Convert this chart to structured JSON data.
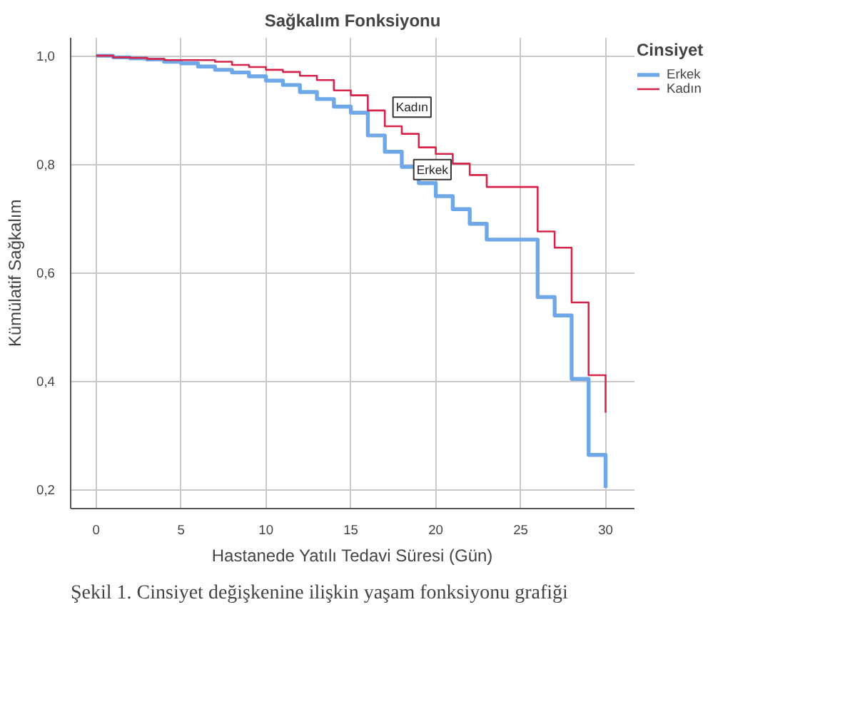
{
  "chart_data": {
    "type": "step",
    "title": "Sağkalım Fonksiyonu",
    "xlabel": "Hastanede Yatılı Tedavi Süresi (Gün)",
    "ylabel": "Kümülatif Sağkalım",
    "legend_title": "Cinsiyet",
    "x": [
      0,
      1,
      2,
      3,
      4,
      5,
      6,
      7,
      8,
      9,
      10,
      11,
      12,
      13,
      14,
      15,
      16,
      17,
      18,
      19,
      20,
      21,
      22,
      23,
      24,
      25,
      26,
      27,
      28,
      29,
      30
    ],
    "series": [
      {
        "name": "Erkek",
        "color": "#6fa8e8",
        "values": [
          1.0,
          0.997,
          0.995,
          0.993,
          0.989,
          0.986,
          0.98,
          0.974,
          0.969,
          0.962,
          0.954,
          0.946,
          0.933,
          0.92,
          0.906,
          0.895,
          0.853,
          0.823,
          0.795,
          0.765,
          0.741,
          0.717,
          0.69,
          0.661,
          0.661,
          0.661,
          0.555,
          0.521,
          0.404,
          0.264,
          0.203
        ]
      },
      {
        "name": "Kadın",
        "color": "#d6254a",
        "values": [
          1.0,
          0.997,
          0.996,
          0.994,
          0.992,
          0.992,
          0.992,
          0.989,
          0.983,
          0.979,
          0.974,
          0.97,
          0.963,
          0.955,
          0.936,
          0.927,
          0.899,
          0.87,
          0.856,
          0.831,
          0.819,
          0.801,
          0.78,
          0.758,
          0.758,
          0.758,
          0.676,
          0.646,
          0.545,
          0.411,
          0.342
        ]
      }
    ],
    "xlim": [
      -1.5,
      31.7
    ],
    "ylim": [
      0.165,
      1.033
    ],
    "xticks": [
      0,
      5,
      10,
      15,
      20,
      25,
      30
    ],
    "yticks": [
      {
        "value": 0.2,
        "label": "0,2"
      },
      {
        "value": 0.4,
        "label": "0,4"
      },
      {
        "value": 0.6,
        "label": "0,6"
      },
      {
        "value": 0.8,
        "label": "0,8"
      },
      {
        "value": 1.0,
        "label": "1,0"
      }
    ],
    "grid": true,
    "legend": "top right",
    "marker": "none",
    "line_style": "solid",
    "annotations": [
      {
        "text": "Kadın",
        "x": 18.6,
        "y": 0.905
      },
      {
        "text": "Erkek",
        "x": 19.8,
        "y": 0.79
      },
      "Şekil 1. Cinsiyet değişkenine ilişkin yaşam fonksiyonu grafiği"
    ]
  }
}
